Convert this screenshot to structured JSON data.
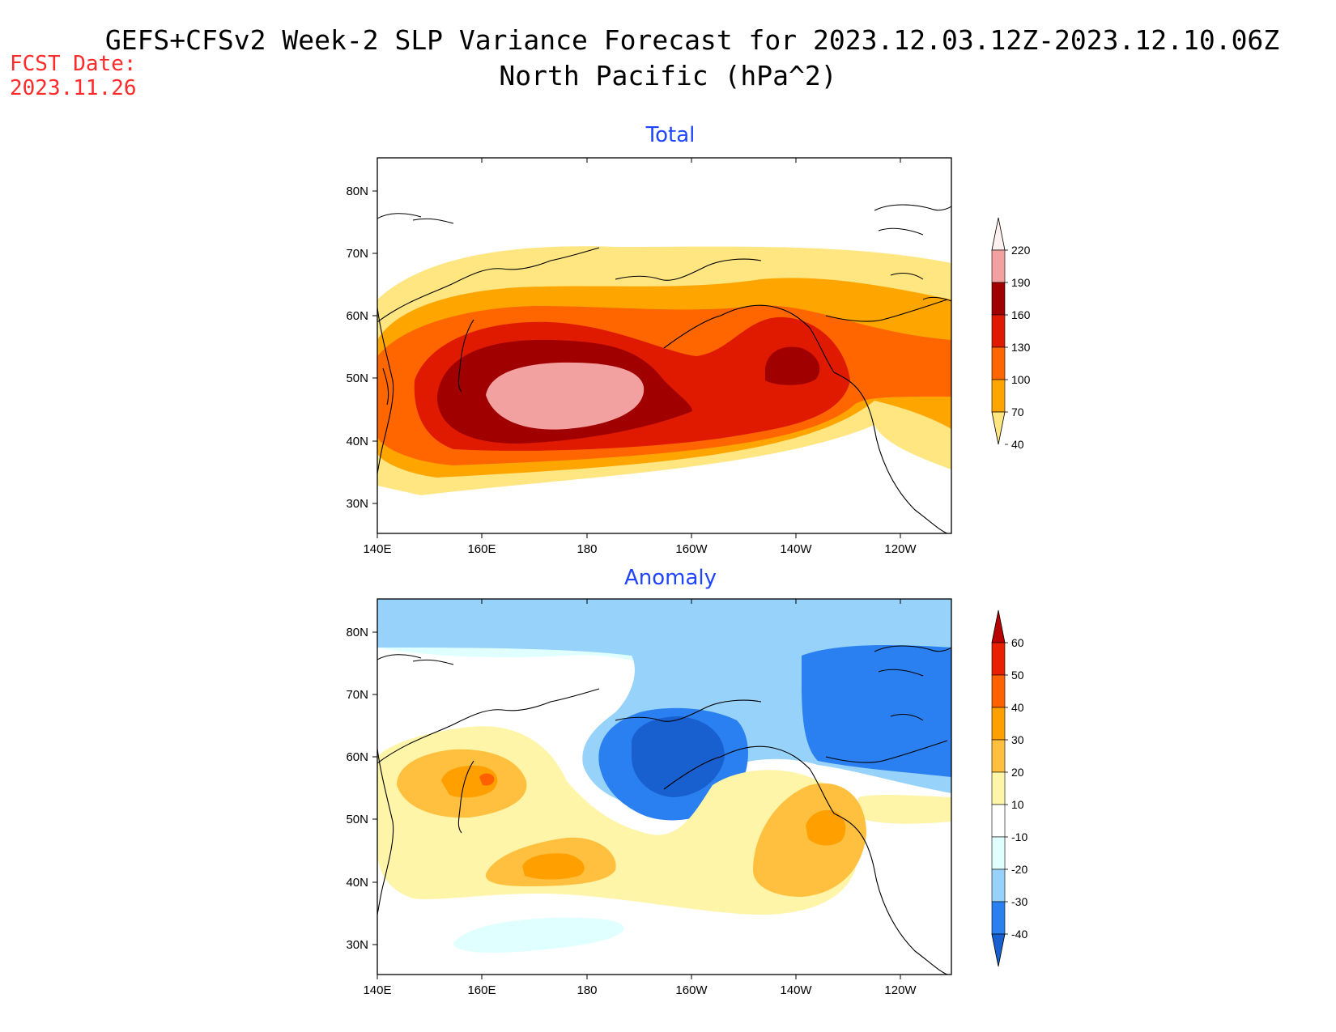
{
  "header": {
    "title_line1": "GEFS+CFSv2 Week-2 SLP Variance Forecast for 2023.12.03.12Z-2023.12.10.06Z",
    "title_line2": "North Pacific (hPa^2)",
    "fcst_label": "FCST Date:",
    "fcst_date": "2023.11.26"
  },
  "map": {
    "lon_ticks": [
      "140E",
      "160E",
      "180",
      "160W",
      "140W",
      "120W"
    ],
    "lat_ticks": [
      "80N",
      "70N",
      "60N",
      "50N",
      "40N",
      "30N"
    ]
  },
  "panels": [
    {
      "title": "Total",
      "colorbar": {
        "labels": [
          "220",
          "190",
          "160",
          "130",
          "100",
          "70",
          "40"
        ],
        "colors": [
          "#fff0f0",
          "#f2a0a0",
          "#a00000",
          "#e01a00",
          "#ff6600",
          "#ffa500",
          "#ffe680"
        ]
      }
    },
    {
      "title": "Anomaly",
      "colorbar": {
        "labels": [
          "60",
          "50",
          "40",
          "30",
          "20",
          "10",
          "-10",
          "-20",
          "-30",
          "-40"
        ],
        "colors": [
          "#b80000",
          "#e82000",
          "#ff6000",
          "#ffa000",
          "#ffc040",
          "#fff5a8",
          "#ffffff",
          "#e0ffff",
          "#96d2fa",
          "#2a80f0",
          "#1860d0"
        ]
      }
    }
  ]
}
